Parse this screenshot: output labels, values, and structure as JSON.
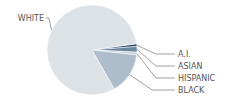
{
  "chart_data": {
    "type": "pie",
    "categories": [
      "A.I.",
      "ASIAN",
      "HISPANIC",
      "BLACK",
      "WHITE"
    ],
    "values": [
      1,
      2,
      1,
      15,
      81
    ],
    "colors": [
      "#2f4f6b",
      "#6a87a0",
      "#c9d3dc",
      "#aebdcb",
      "#dde2e7"
    ]
  }
}
